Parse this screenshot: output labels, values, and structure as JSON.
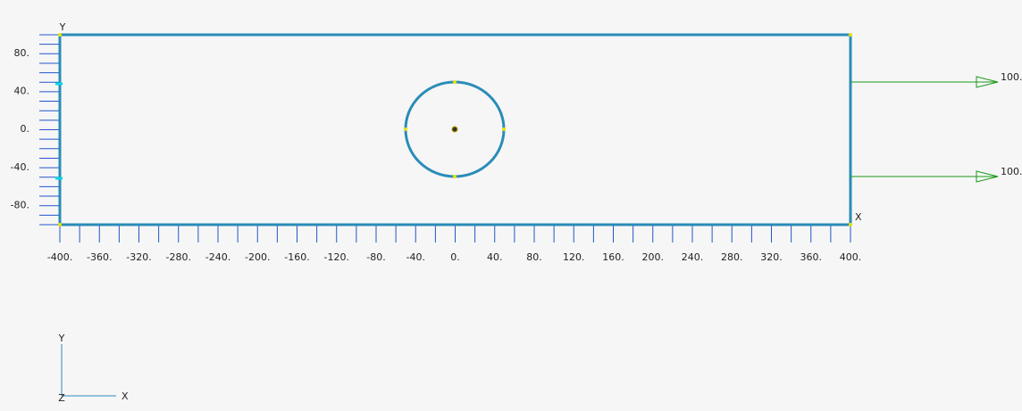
{
  "viewport": {
    "x_axis": {
      "title": "X",
      "labels": [
        "-400.",
        "-360.",
        "-320.",
        "-280.",
        "-240.",
        "-200.",
        "-160.",
        "-120.",
        "-80.",
        "-40.",
        "0.",
        "40.",
        "80.",
        "120.",
        "160.",
        "200.",
        "240.",
        "280.",
        "320.",
        "360.",
        "400."
      ]
    },
    "y_axis": {
      "title": "Y",
      "labels": [
        "80.",
        "40.",
        "0.",
        "-40.",
        "-80."
      ]
    },
    "loads": [
      {
        "label": "100."
      },
      {
        "label": "100."
      }
    ],
    "triad": {
      "x": "X",
      "y": "Y",
      "z": "Z"
    }
  }
}
